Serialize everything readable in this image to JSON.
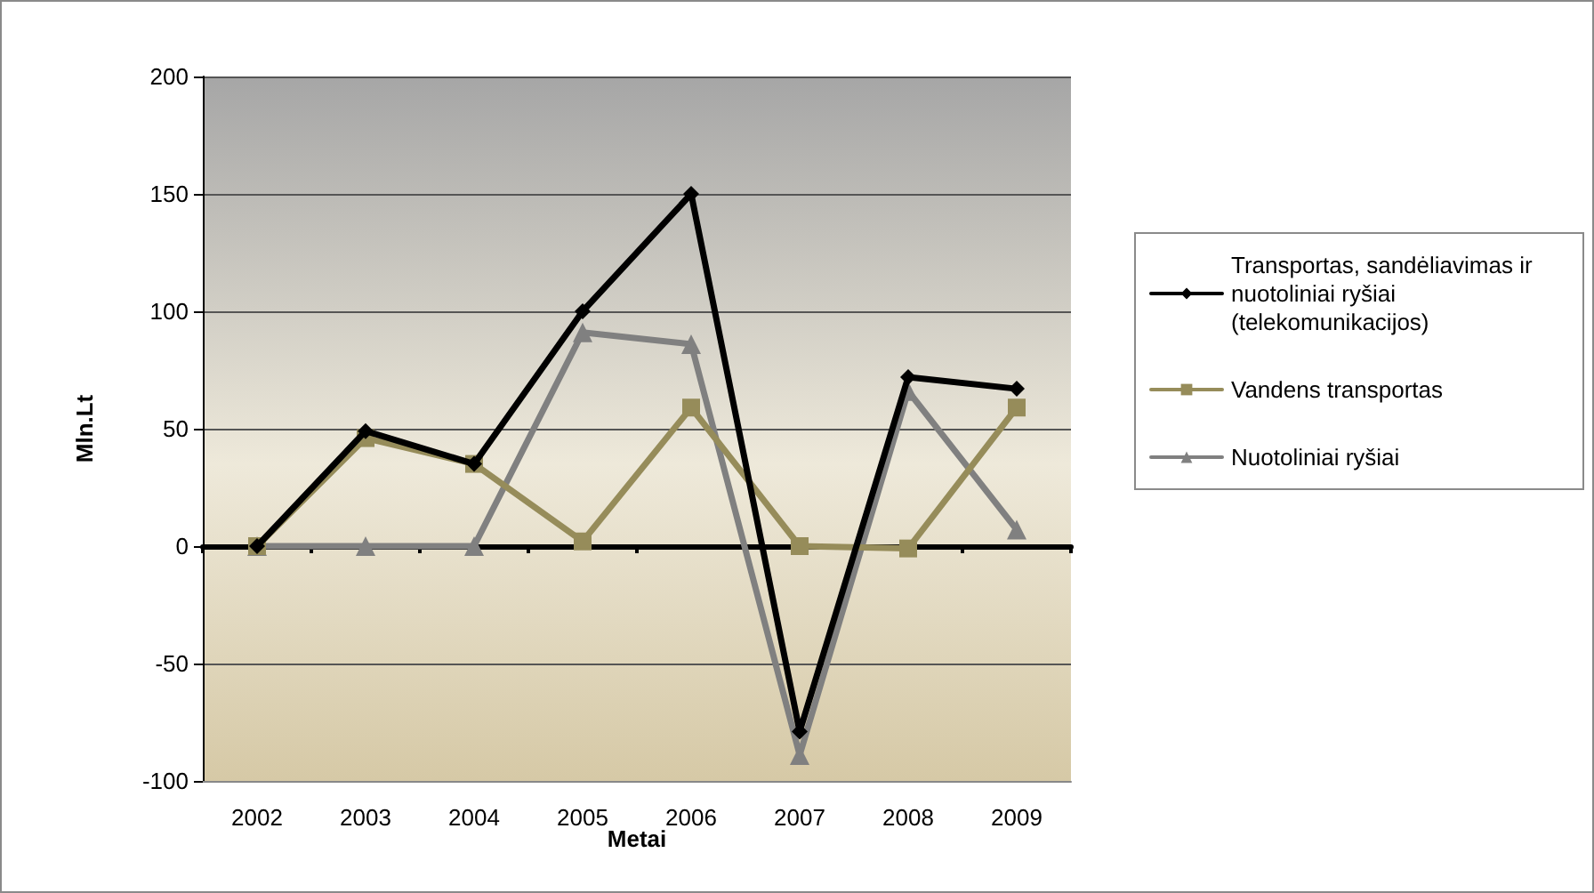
{
  "chart_data": {
    "type": "line",
    "xlabel": "Metai",
    "ylabel": "Mln.Lt",
    "categories": [
      "2002",
      "2003",
      "2004",
      "2005",
      "2006",
      "2007",
      "2008",
      "2009"
    ],
    "series": [
      {
        "name": "Transportas, sandėliavimas ir nuotoliniai ryšiai (telekomunikacijos)",
        "color": "#000000",
        "marker": "diamond",
        "values": [
          0,
          49,
          35,
          100,
          150,
          -79,
          72,
          67
        ]
      },
      {
        "name": "Vandens transportas",
        "color": "#968c5a",
        "marker": "square",
        "values": [
          0,
          46,
          35,
          2,
          59,
          0,
          -1,
          59
        ]
      },
      {
        "name": "Nuotoliniai ryšiai",
        "color": "#808080",
        "marker": "triangle",
        "values": [
          0,
          0,
          0,
          91,
          86,
          -89,
          66,
          7
        ]
      }
    ],
    "ylim": [
      -100,
      200
    ],
    "yticks": [
      -100,
      -50,
      0,
      50,
      100,
      150,
      200
    ],
    "grid": "y",
    "legend": "right",
    "line_style": "solid"
  }
}
